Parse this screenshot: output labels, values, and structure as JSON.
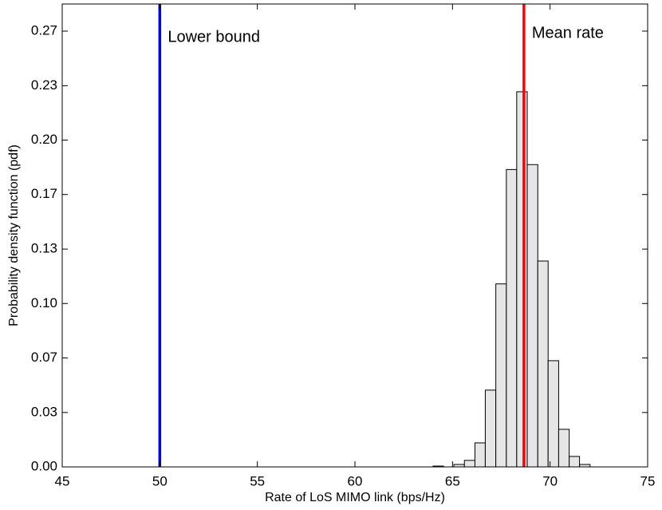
{
  "chart_data": {
    "type": "histogram",
    "xlabel": "Rate of LoS MIMO link (bps/Hz)",
    "ylabel": "Probability density function (pdf)",
    "bins": [
      64.0,
      64.54,
      65.07,
      65.61,
      66.15,
      66.68,
      67.22,
      67.76,
      68.29,
      68.83,
      69.37,
      69.9,
      70.44,
      70.98,
      71.51,
      72.05
    ],
    "counts": [
      0.0005,
      0,
      0.0015,
      0.004,
      0.0147,
      0.047,
      0.112,
      0.182,
      0.2296,
      0.185,
      0.126,
      0.065,
      0.023,
      0.0064,
      0.0015
    ],
    "color": "#e6e6e6",
    "edgecolor": "#000000",
    "xlim": [
      45,
      75
    ],
    "xticks": [
      45,
      50,
      55,
      60,
      65,
      70,
      75
    ],
    "ylim": [
      0,
      0.2833
    ],
    "yticks": [
      {
        "value": 0,
        "label": "0.00"
      },
      {
        "value": 0.0333,
        "label": "0.03"
      },
      {
        "value": 0.0667,
        "label": "0.07"
      },
      {
        "value": 0.1,
        "label": "0.10"
      },
      {
        "value": 0.1333,
        "label": "0.13"
      },
      {
        "value": 0.1667,
        "label": "0.17"
      },
      {
        "value": 0.2,
        "label": "0.20"
      },
      {
        "value": 0.2333,
        "label": "0.23"
      },
      {
        "value": 0.2667,
        "label": "0.27"
      }
    ],
    "vlines": [
      {
        "label": "Lower bound",
        "x": 50,
        "color": "#0000ff"
      },
      {
        "label": "Mean rate",
        "x": 68.66,
        "color": "#ff0000"
      }
    ]
  }
}
